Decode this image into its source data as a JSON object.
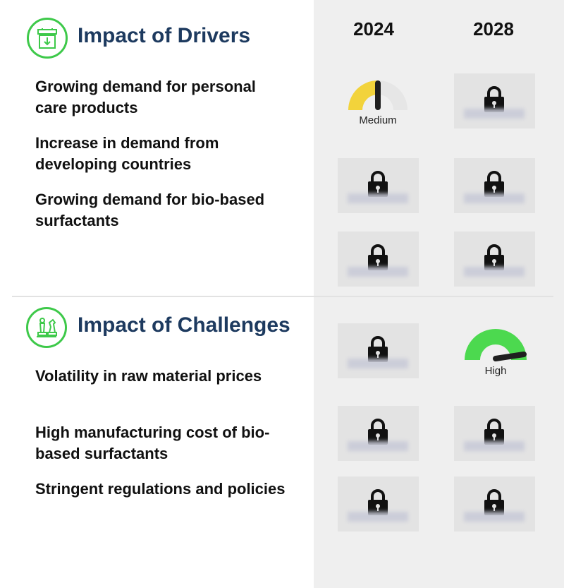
{
  "columns": {
    "year_1": "2024",
    "year_2": "2028"
  },
  "drivers": {
    "title": "Impact of Drivers",
    "icon": "factory-icon",
    "items": [
      "Growing demand for personal care products",
      "Increase in demand from developing countries",
      "Growing demand for bio-based surfactants"
    ],
    "gauge_2024": {
      "label": "Medium",
      "level": 0.5,
      "color": "#f2d33b"
    }
  },
  "challenges": {
    "title": "Impact of Challenges",
    "icon": "chess-pieces-icon",
    "items": [
      "Volatility in raw material prices",
      "High manufacturing cost of bio-based surfactants",
      "Stringent regulations and policies"
    ],
    "gauge_2028": {
      "label": "High",
      "level": 0.85,
      "color": "#4cd94f"
    }
  },
  "locked_icon": "padlock-icon",
  "accent": "#3ec94a",
  "title_color": "#1d3a5f"
}
